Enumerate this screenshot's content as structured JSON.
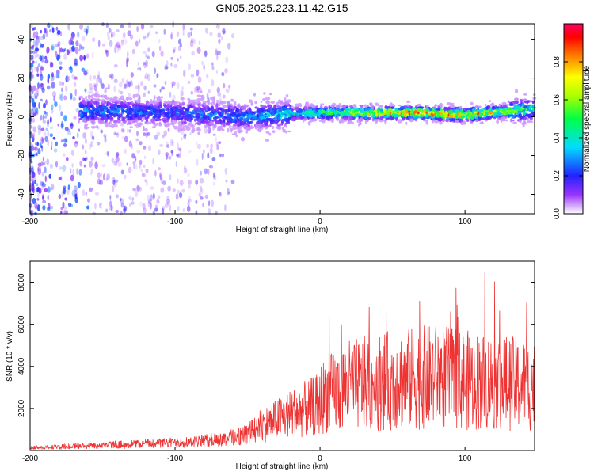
{
  "title": "GN05.2025.223.11.42.G15",
  "chart_data": [
    {
      "type": "heatmap",
      "xlabel": "Height of straight line (km)",
      "ylabel": "Frequency (Hz)",
      "xlim": [
        -200,
        148
      ],
      "ylim": [
        -50,
        48
      ],
      "xticks": [
        -200,
        -100,
        0,
        100
      ],
      "yticks": [
        -40,
        -20,
        0,
        20,
        40
      ],
      "colorbar": {
        "label": "Normalized spectral amplitude",
        "range": [
          0,
          1
        ],
        "ticks": [
          0.0,
          0.2,
          0.4,
          0.6,
          0.8
        ],
        "colors": [
          "#ffffff",
          "#8800ff",
          "#0000ff",
          "#00ffff",
          "#00ff00",
          "#ffff00",
          "#ff8800",
          "#ff0000",
          "#ff0088"
        ]
      },
      "ridge": {
        "description_values": [
          {
            "x": -160,
            "y": 3,
            "amp": 0.3
          },
          {
            "x": -100,
            "y": 2,
            "amp": 0.25
          },
          {
            "x": -50,
            "y": 0,
            "amp": 0.3
          },
          {
            "x": -10,
            "y": 2,
            "amp": 0.45
          },
          {
            "x": 30,
            "y": 2,
            "amp": 0.7
          },
          {
            "x": 70,
            "y": 2,
            "amp": 0.9
          },
          {
            "x": 100,
            "y": 1,
            "amp": 0.9
          },
          {
            "x": 148,
            "y": 4,
            "amp": 0.4
          }
        ]
      }
    },
    {
      "type": "line",
      "xlabel": "Height of straight line (km)",
      "ylabel": "SNR (10 * v/v)",
      "xlim": [
        -200,
        148
      ],
      "ylim": [
        0,
        9000
      ],
      "xticks": [
        -200,
        -100,
        0,
        100
      ],
      "yticks": [
        2000,
        4000,
        6000,
        8000
      ],
      "series": [
        {
          "color": "#ee3333",
          "envelope": [
            {
              "x": -200,
              "y": 150
            },
            {
              "x": -150,
              "y": 300
            },
            {
              "x": -100,
              "y": 450
            },
            {
              "x": -70,
              "y": 600
            },
            {
              "x": -50,
              "y": 900
            },
            {
              "x": -40,
              "y": 1500
            },
            {
              "x": -20,
              "y": 2200
            },
            {
              "x": 0,
              "y": 2800
            },
            {
              "x": 20,
              "y": 3500
            },
            {
              "x": 50,
              "y": 3800
            },
            {
              "x": 80,
              "y": 4000
            },
            {
              "x": 100,
              "y": 3800
            },
            {
              "x": 120,
              "y": 3700
            },
            {
              "x": 148,
              "y": 3500
            }
          ]
        }
      ]
    }
  ]
}
